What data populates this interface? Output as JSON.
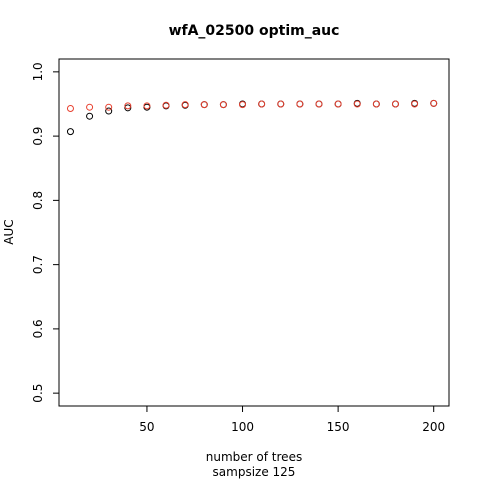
{
  "chart_data": {
    "type": "scatter",
    "title": "wfA_02500 optim_auc",
    "xlabel": "number of trees",
    "xlabel2": "sampsize 125",
    "ylabel": "AUC",
    "xlim": [
      4,
      208
    ],
    "ylim": [
      0.48,
      1.02
    ],
    "xticks": [
      50,
      100,
      150,
      200
    ],
    "yticks": [
      0.5,
      0.6,
      0.7,
      0.8,
      0.9,
      1.0
    ],
    "ytick_labels": [
      "0.5",
      "0.6",
      "0.7",
      "0.8",
      "0.9",
      "1.0"
    ],
    "grid": false,
    "x": [
      10,
      20,
      30,
      40,
      50,
      60,
      70,
      80,
      90,
      100,
      110,
      120,
      130,
      140,
      150,
      160,
      170,
      180,
      190,
      200
    ],
    "series": [
      {
        "color": "#000000",
        "values": [
          0.907,
          0.931,
          0.939,
          0.944,
          0.945,
          0.947,
          0.948,
          0.949,
          0.949,
          0.95,
          0.95,
          0.95,
          0.95,
          0.95,
          0.95,
          0.951,
          0.95,
          0.95,
          0.951,
          0.951
        ]
      },
      {
        "color": "#e8402f",
        "values": [
          0.943,
          0.945,
          0.945,
          0.947,
          0.947,
          0.948,
          0.949,
          0.949,
          0.949,
          0.949,
          0.95,
          0.95,
          0.95,
          0.95,
          0.95,
          0.95,
          0.95,
          0.95,
          0.95,
          0.951
        ]
      }
    ]
  }
}
